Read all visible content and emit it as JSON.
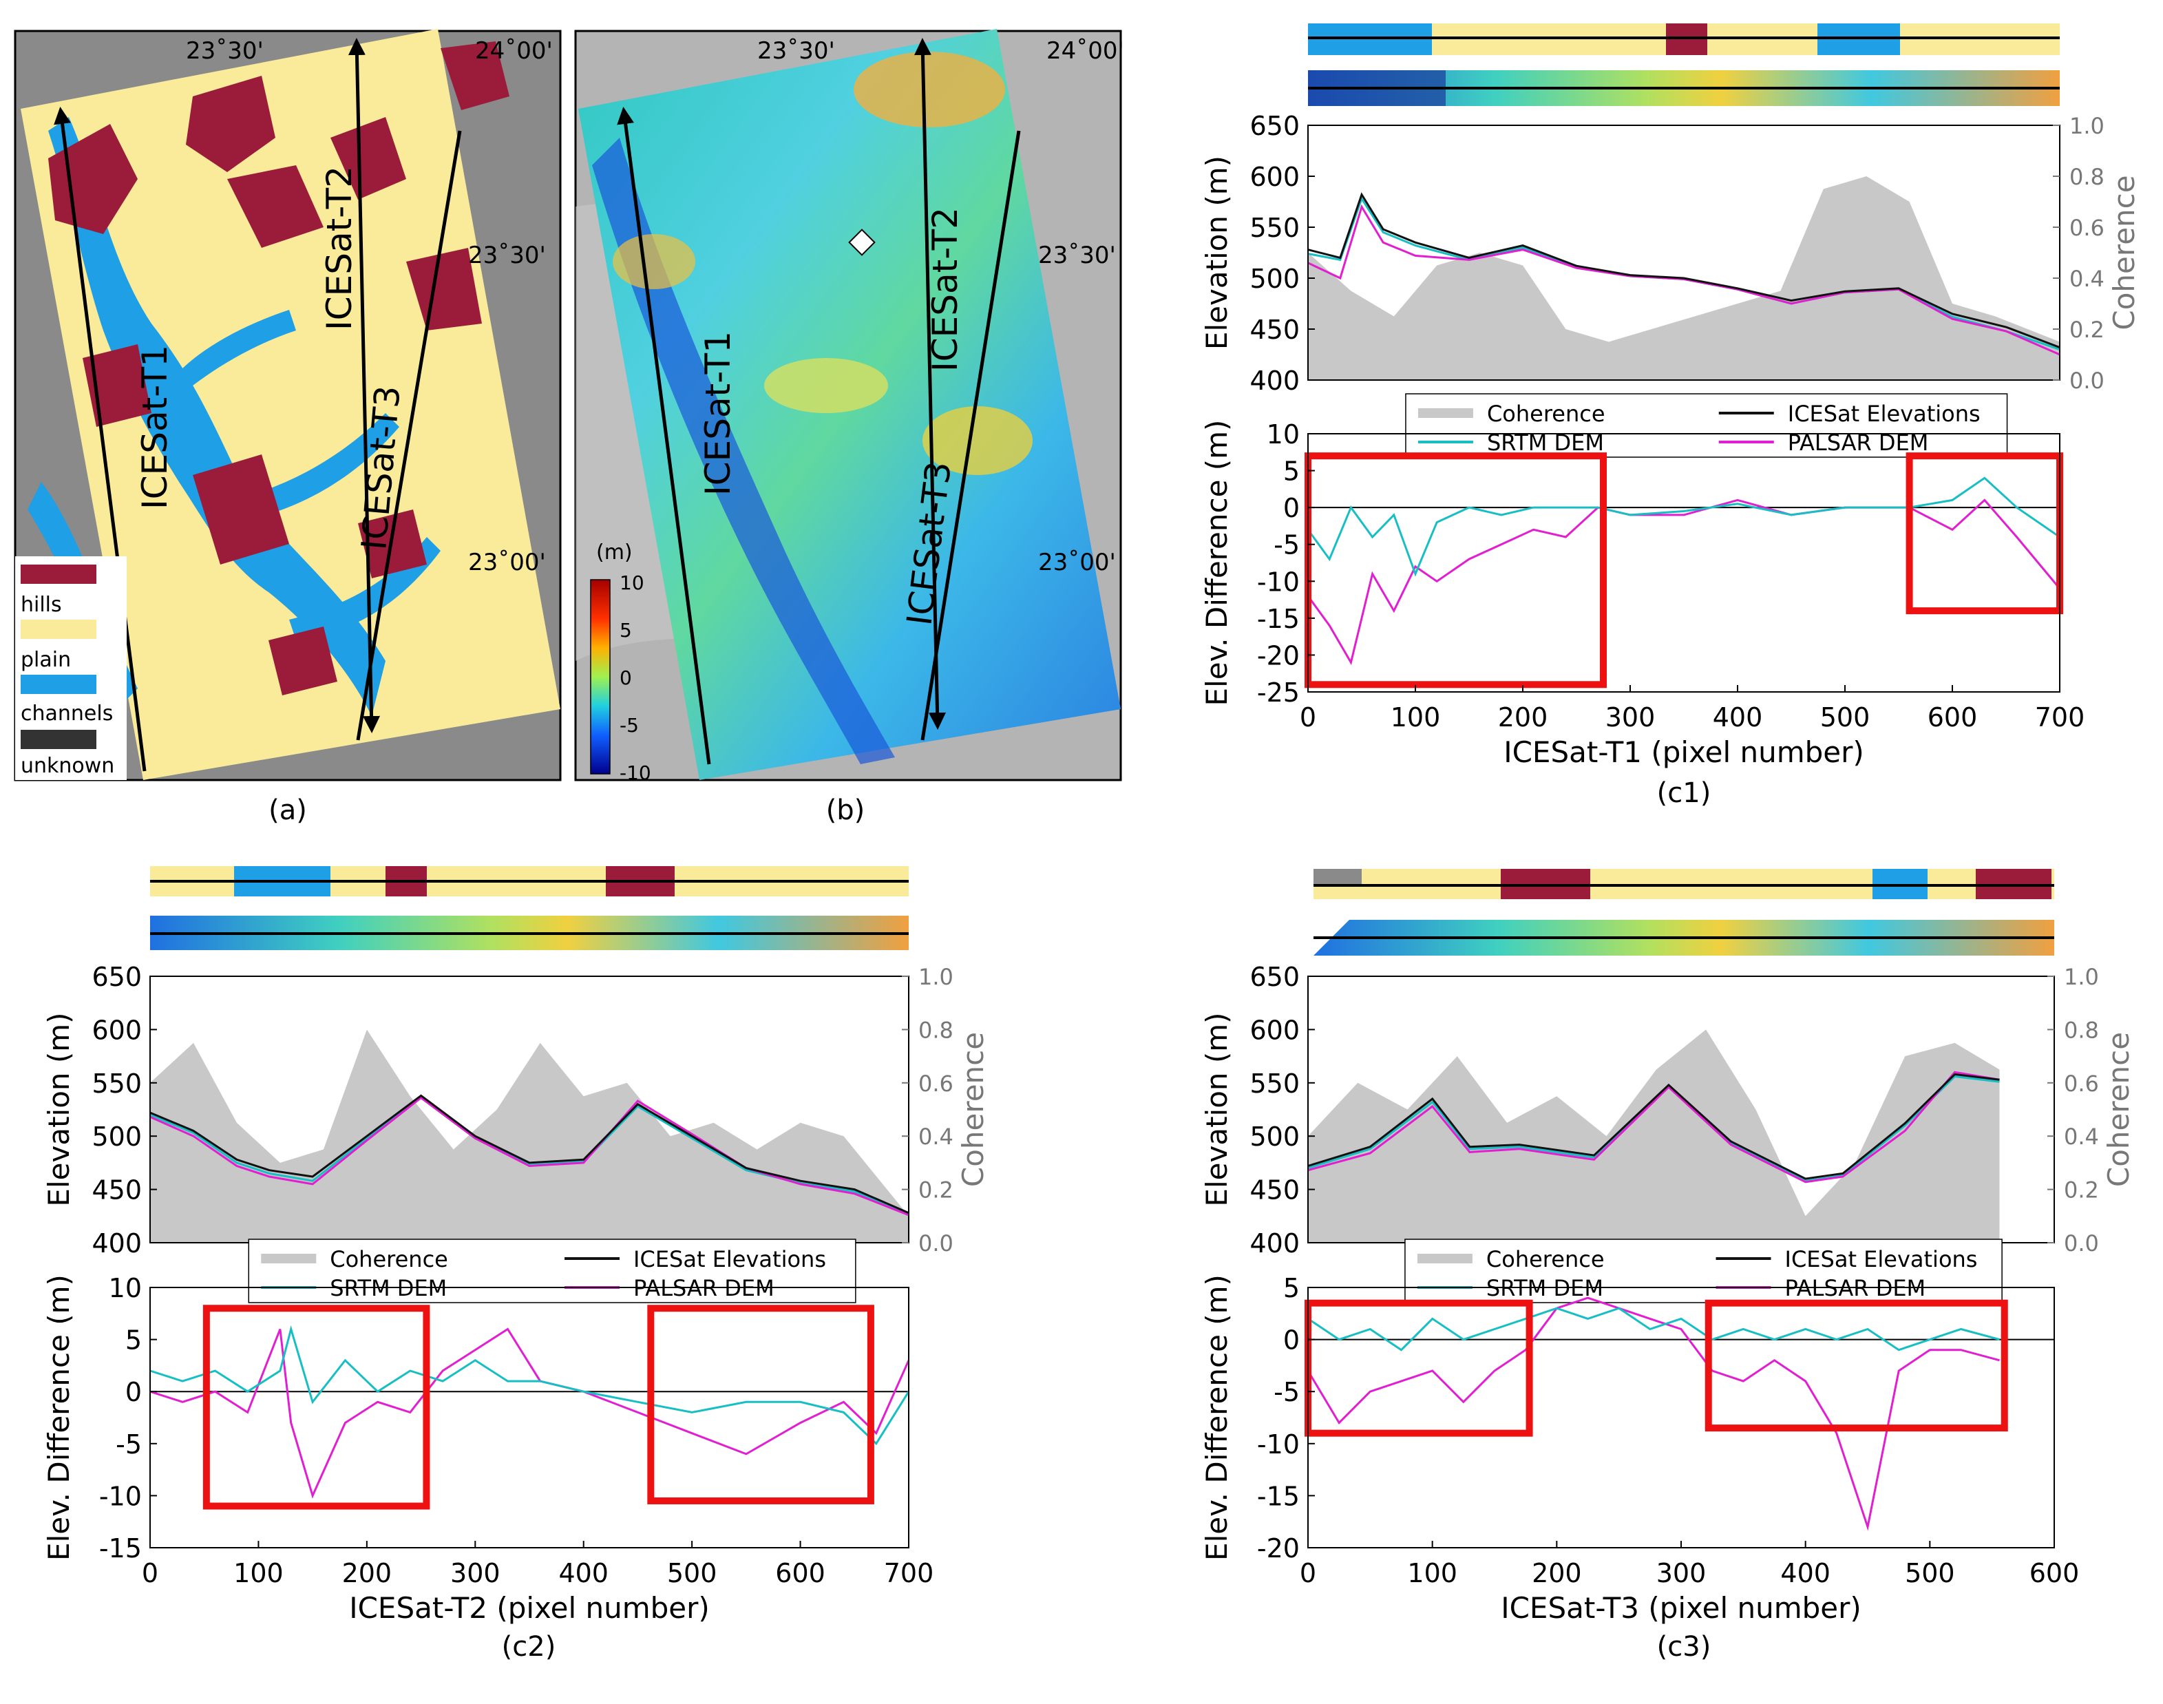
{
  "panels": {
    "a": {
      "caption": "(a)",
      "lon_labels": [
        "23˚30'",
        "24˚00'"
      ],
      "lat_labels": [
        "23˚30'",
        "23˚00'"
      ],
      "tracks": [
        "ICESat-T1",
        "ICESat-T2",
        "ICESat-T3"
      ],
      "legend": [
        {
          "label": "hills",
          "color": "#9b1c3a"
        },
        {
          "label": "plain",
          "color": "#faeb9a"
        },
        {
          "label": "channels",
          "color": "#1f9fe6"
        },
        {
          "label": "unknown",
          "color": "#333333"
        }
      ]
    },
    "b": {
      "caption": "(b)",
      "lon_labels": [
        "23˚30'",
        "24˚00'"
      ],
      "lat_labels": [
        "23˚30'",
        "23˚00'"
      ],
      "tracks": [
        "ICESat-T1",
        "ICESat-T2",
        "ICESat-T3"
      ],
      "colorbar": {
        "unit": "(m)",
        "ticks": [
          "10",
          "5",
          "0",
          "-5",
          "-10"
        ]
      }
    }
  },
  "chart_data": [
    {
      "type": "line",
      "id": "c1",
      "caption": "(c1)",
      "xlabel": "ICESat-T1 (pixel number)",
      "top_ylabel": "Elevation (m)",
      "top_ylabel_right": "Coherence",
      "bottom_ylabel": "Elev. Difference (m)",
      "xlim": [
        0,
        700
      ],
      "xticks": [
        0,
        100,
        200,
        300,
        400,
        500,
        600,
        700
      ],
      "elev_ylim": [
        400,
        650
      ],
      "elev_yticks": [
        400,
        450,
        500,
        550,
        600,
        650
      ],
      "coh_ylim": [
        0,
        1
      ],
      "coh_yticks": [
        "0.0",
        "0.2",
        "0.4",
        "0.6",
        "0.8",
        "1.0"
      ],
      "diff_ylim": [
        -25,
        10
      ],
      "diff_yticks": [
        -25,
        -20,
        -15,
        -10,
        -5,
        0,
        5,
        10
      ],
      "legend": [
        "Coherence",
        "ICESat Elevations",
        "SRTM DEM",
        "PALSAR DEM"
      ],
      "coherence": {
        "x": [
          0,
          40,
          80,
          120,
          160,
          200,
          240,
          280,
          320,
          360,
          400,
          440,
          480,
          520,
          560,
          600,
          640,
          700
        ],
        "values": [
          0.5,
          0.35,
          0.25,
          0.45,
          0.5,
          0.45,
          0.2,
          0.15,
          0.2,
          0.25,
          0.3,
          0.35,
          0.75,
          0.8,
          0.7,
          0.3,
          0.25,
          0.15
        ]
      },
      "icesat": {
        "x": [
          0,
          30,
          50,
          70,
          100,
          150,
          200,
          250,
          300,
          350,
          400,
          450,
          500,
          550,
          600,
          650,
          700
        ],
        "values": [
          528,
          520,
          582,
          548,
          535,
          520,
          532,
          512,
          503,
          500,
          490,
          478,
          487,
          490,
          465,
          452,
          432
        ]
      },
      "srtm": {
        "x": [
          0,
          30,
          50,
          70,
          100,
          150,
          200,
          250,
          300,
          350,
          400,
          450,
          500,
          550,
          600,
          650,
          700
        ],
        "values": [
          524,
          518,
          578,
          545,
          532,
          518,
          530,
          510,
          502,
          499,
          489,
          475,
          486,
          489,
          462,
          448,
          430
        ]
      },
      "palsar": {
        "x": [
          0,
          30,
          50,
          70,
          100,
          150,
          200,
          250,
          300,
          350,
          400,
          450,
          500,
          550,
          600,
          650,
          700
        ],
        "values": [
          515,
          500,
          570,
          535,
          522,
          518,
          528,
          510,
          502,
          499,
          489,
          475,
          486,
          489,
          460,
          448,
          425
        ]
      },
      "diff_srtm": {
        "x": [
          0,
          20,
          40,
          60,
          80,
          100,
          120,
          150,
          180,
          210,
          240,
          270,
          300,
          350,
          400,
          450,
          500,
          560,
          600,
          630,
          660,
          700
        ],
        "values": [
          -3,
          -7,
          0,
          -4,
          -1,
          -9,
          -2,
          0,
          -1,
          0,
          0,
          0,
          -1,
          -0.5,
          0.5,
          -1,
          0,
          0,
          1,
          4,
          0,
          -4
        ]
      },
      "diff_palsar": {
        "x": [
          0,
          20,
          40,
          60,
          80,
          100,
          120,
          150,
          180,
          210,
          240,
          270,
          300,
          350,
          400,
          450,
          500,
          560,
          600,
          630,
          660,
          700
        ],
        "values": [
          -12,
          -16,
          -21,
          -9,
          -14,
          -8,
          -10,
          -7,
          -5,
          -3,
          -4,
          0,
          -1,
          -1,
          1,
          -1,
          0,
          0,
          -3,
          1,
          -4,
          -11
        ]
      },
      "highlight_boxes": [
        [
          0,
          275,
          -24,
          7
        ],
        [
          560,
          700,
          -14,
          7
        ]
      ]
    },
    {
      "type": "line",
      "id": "c2",
      "caption": "(c2)",
      "xlabel": "ICESat-T2 (pixel number)",
      "top_ylabel": "Elevation (m)",
      "top_ylabel_right": "Coherence",
      "bottom_ylabel": "Elev. Difference (m)",
      "xlim": [
        0,
        700
      ],
      "xticks": [
        0,
        100,
        200,
        300,
        400,
        500,
        600,
        700
      ],
      "elev_ylim": [
        400,
        650
      ],
      "elev_yticks": [
        400,
        450,
        500,
        550,
        600,
        650
      ],
      "coh_ylim": [
        0,
        1
      ],
      "coh_yticks": [
        "0.0",
        "0.2",
        "0.4",
        "0.6",
        "0.8",
        "1.0"
      ],
      "diff_ylim": [
        -15,
        10
      ],
      "diff_yticks": [
        -15,
        -10,
        -5,
        0,
        5,
        10
      ],
      "legend": [
        "Coherence",
        "ICESat Elevations",
        "SRTM DEM",
        "PALSAR DEM"
      ],
      "coherence": {
        "x": [
          0,
          40,
          80,
          120,
          160,
          200,
          240,
          280,
          320,
          360,
          400,
          440,
          480,
          520,
          560,
          600,
          640,
          700
        ],
        "values": [
          0.6,
          0.75,
          0.45,
          0.3,
          0.35,
          0.8,
          0.55,
          0.35,
          0.5,
          0.75,
          0.55,
          0.6,
          0.4,
          0.45,
          0.35,
          0.45,
          0.4,
          0.1
        ]
      },
      "icesat": {
        "x": [
          0,
          40,
          80,
          110,
          150,
          200,
          250,
          300,
          350,
          400,
          450,
          500,
          550,
          600,
          650,
          700
        ],
        "values": [
          522,
          505,
          478,
          468,
          462,
          500,
          538,
          500,
          475,
          478,
          530,
          500,
          470,
          458,
          450,
          428
        ]
      },
      "srtm": {
        "x": [
          0,
          40,
          80,
          110,
          150,
          200,
          250,
          300,
          350,
          400,
          450,
          500,
          550,
          600,
          650,
          700
        ],
        "values": [
          520,
          503,
          475,
          465,
          458,
          498,
          536,
          498,
          473,
          476,
          528,
          498,
          468,
          456,
          448,
          427
        ]
      },
      "palsar": {
        "x": [
          0,
          40,
          80,
          110,
          150,
          200,
          250,
          300,
          350,
          400,
          450,
          500,
          550,
          600,
          650,
          700
        ],
        "values": [
          518,
          500,
          472,
          462,
          455,
          496,
          536,
          498,
          472,
          475,
          533,
          502,
          470,
          455,
          446,
          426
        ]
      },
      "diff_srtm": {
        "x": [
          0,
          30,
          60,
          90,
          120,
          130,
          150,
          180,
          210,
          240,
          270,
          300,
          330,
          360,
          400,
          450,
          500,
          550,
          600,
          640,
          670,
          700
        ],
        "values": [
          2,
          1,
          2,
          0,
          2,
          6,
          -1,
          3,
          0,
          2,
          1,
          3,
          1,
          1,
          0,
          -1,
          -2,
          -1,
          -1,
          -2,
          -5,
          0
        ]
      },
      "diff_palsar": {
        "x": [
          0,
          30,
          60,
          90,
          120,
          130,
          150,
          180,
          210,
          240,
          270,
          300,
          330,
          360,
          400,
          450,
          500,
          550,
          600,
          640,
          670,
          700
        ],
        "values": [
          0,
          -1,
          0,
          -2,
          6,
          -3,
          -10,
          -3,
          -1,
          -2,
          2,
          4,
          6,
          1,
          0,
          -2,
          -4,
          -6,
          -3,
          -1,
          -4,
          3
        ]
      },
      "highlight_boxes": [
        [
          52,
          255,
          -11,
          8
        ],
        [
          462,
          665,
          -10.5,
          8
        ]
      ]
    },
    {
      "type": "line",
      "id": "c3",
      "caption": "(c3)",
      "xlabel": "ICESat-T3 (pixel number)",
      "top_ylabel": "Elevation (m)",
      "top_ylabel_right": "Coherence",
      "bottom_ylabel": "Elev. Difference (m)",
      "xlim": [
        0,
        600
      ],
      "xticks": [
        0,
        100,
        200,
        300,
        400,
        500,
        600
      ],
      "elev_ylim": [
        400,
        650
      ],
      "elev_yticks": [
        400,
        450,
        500,
        550,
        600,
        650
      ],
      "coh_ylim": [
        0,
        1
      ],
      "coh_yticks": [
        "0.0",
        "0.2",
        "0.4",
        "0.6",
        "0.8",
        "1.0"
      ],
      "diff_ylim": [
        -20,
        5
      ],
      "diff_yticks": [
        -20,
        -15,
        -10,
        -5,
        0,
        5
      ],
      "legend": [
        "Coherence",
        "ICESat Elevations",
        "SRTM DEM",
        "PALSAR DEM"
      ],
      "coherence": {
        "x": [
          0,
          40,
          80,
          120,
          160,
          200,
          240,
          280,
          320,
          360,
          400,
          440,
          480,
          520,
          556
        ],
        "values": [
          0.4,
          0.6,
          0.5,
          0.7,
          0.45,
          0.55,
          0.4,
          0.65,
          0.8,
          0.5,
          0.1,
          0.3,
          0.7,
          0.75,
          0.65
        ]
      },
      "icesat": {
        "x": [
          0,
          50,
          100,
          130,
          170,
          230,
          290,
          340,
          400,
          430,
          480,
          520,
          556
        ],
        "values": [
          472,
          490,
          535,
          490,
          492,
          482,
          548,
          495,
          460,
          465,
          512,
          558,
          553
        ]
      },
      "srtm": {
        "x": [
          0,
          50,
          100,
          130,
          170,
          230,
          290,
          340,
          400,
          430,
          480,
          520,
          556
        ],
        "values": [
          470,
          488,
          532,
          488,
          490,
          480,
          546,
          493,
          458,
          463,
          510,
          556,
          551
        ]
      },
      "palsar": {
        "x": [
          0,
          50,
          100,
          130,
          170,
          230,
          290,
          340,
          400,
          430,
          480,
          520,
          556
        ],
        "values": [
          468,
          484,
          528,
          485,
          488,
          478,
          546,
          492,
          457,
          462,
          505,
          560,
          553
        ]
      },
      "diff_srtm": {
        "x": [
          0,
          25,
          50,
          75,
          100,
          125,
          150,
          175,
          200,
          225,
          250,
          275,
          300,
          325,
          350,
          375,
          400,
          425,
          450,
          475,
          500,
          525,
          556
        ],
        "values": [
          2,
          0,
          1,
          -1,
          2,
          0,
          1,
          2,
          3,
          2,
          3,
          1,
          2,
          0,
          1,
          0,
          1,
          0,
          1,
          -1,
          0,
          1,
          0
        ]
      },
      "diff_palsar": {
        "x": [
          0,
          25,
          50,
          75,
          100,
          125,
          150,
          175,
          200,
          225,
          250,
          275,
          300,
          325,
          350,
          375,
          400,
          425,
          450,
          475,
          500,
          525,
          556
        ],
        "values": [
          -3,
          -8,
          -5,
          -4,
          -3,
          -6,
          -3,
          -1,
          3,
          4,
          3,
          2,
          1,
          -3,
          -4,
          -2,
          -4,
          -9,
          -18,
          -3,
          -1,
          -1,
          -2
        ]
      },
      "highlight_boxes": [
        [
          0,
          178,
          -9,
          3.5
        ],
        [
          322,
          560,
          -8.5,
          3.5
        ]
      ]
    }
  ]
}
